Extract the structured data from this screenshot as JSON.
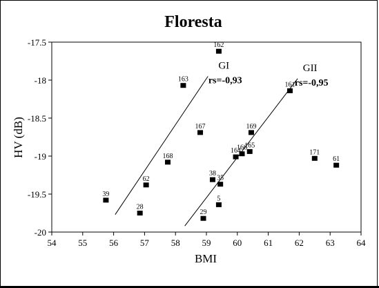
{
  "chart_data": {
    "type": "scatter",
    "title": "Floresta",
    "xlabel": "BMI",
    "ylabel": "HV (dB)",
    "xlim": [
      54,
      64
    ],
    "ylim": [
      -20,
      -17.5
    ],
    "xticks": [
      "54",
      "55",
      "56",
      "57",
      "58",
      "59",
      "60",
      "61",
      "62",
      "63",
      "64"
    ],
    "yticks": [
      "-17.5",
      "-18",
      "-18.5",
      "-19",
      "-19.5",
      "-20"
    ],
    "grid": false,
    "points": [
      {
        "label": "162",
        "x": 59.4,
        "y": -17.62
      },
      {
        "label": "163",
        "x": 58.25,
        "y": -18.07
      },
      {
        "label": "161",
        "x": 61.7,
        "y": -18.14
      },
      {
        "label": "167",
        "x": 58.8,
        "y": -18.69
      },
      {
        "label": "169",
        "x": 60.45,
        "y": -18.69
      },
      {
        "label": "168",
        "x": 57.75,
        "y": -19.08
      },
      {
        "label": "164",
        "x": 59.95,
        "y": -19.01
      },
      {
        "label": "166",
        "x": 60.15,
        "y": -18.97
      },
      {
        "label": "165",
        "x": 60.4,
        "y": -18.94
      },
      {
        "label": "171",
        "x": 62.5,
        "y": -19.03
      },
      {
        "label": "61",
        "x": 63.2,
        "y": -19.12
      },
      {
        "label": "38",
        "x": 59.2,
        "y": -19.31
      },
      {
        "label": "35",
        "x": 59.45,
        "y": -19.37
      },
      {
        "label": "62",
        "x": 57.05,
        "y": -19.38
      },
      {
        "label": "39",
        "x": 55.75,
        "y": -19.58
      },
      {
        "label": "5",
        "x": 59.4,
        "y": -19.64
      },
      {
        "label": "28",
        "x": 56.85,
        "y": -19.75
      },
      {
        "label": "29",
        "x": 58.9,
        "y": -19.82
      }
    ],
    "fit_lines": [
      {
        "name": "GI",
        "stat": "rs=-0,93",
        "x": [
          56.05,
          59.05
        ],
        "y": [
          -19.77,
          -17.95
        ]
      },
      {
        "name": "GII",
        "stat": "rs=-0,95",
        "x": [
          58.3,
          61.95
        ],
        "y": [
          -19.92,
          -17.98
        ]
      }
    ]
  }
}
